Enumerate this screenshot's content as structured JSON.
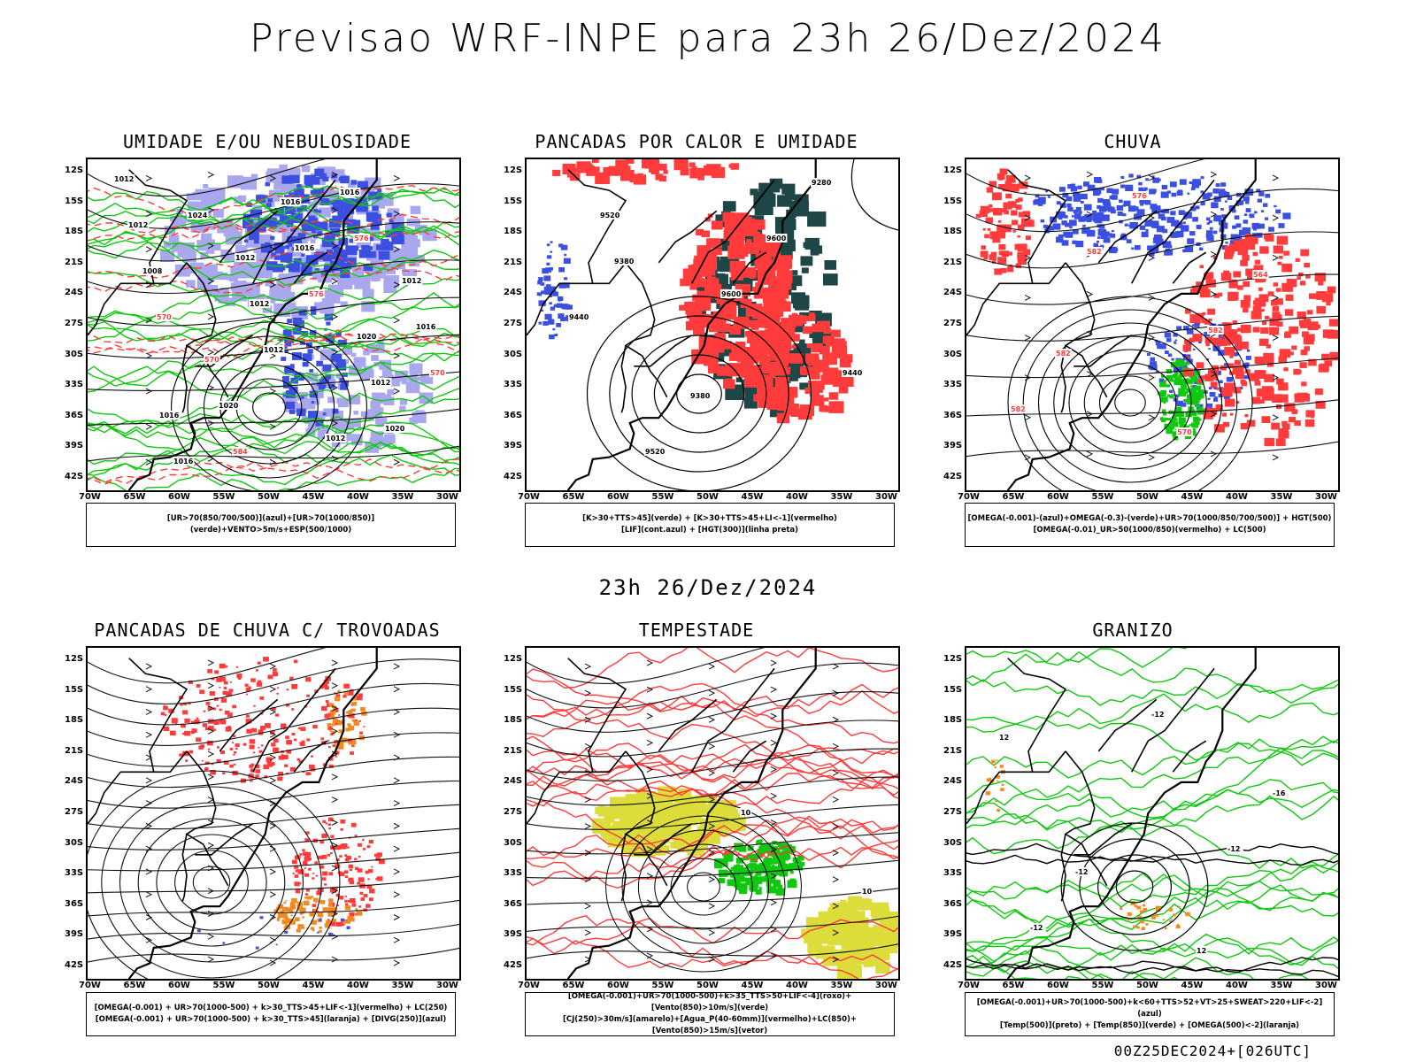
{
  "title": "Previsao WRF-INPE  para 23h 26/Dez/2024",
  "mid_title": "23h 26/Dez/2024",
  "footer": "00Z25DEC2024+[026UTC]",
  "lat_labels": [
    "12S",
    "15S",
    "18S",
    "21S",
    "24S",
    "27S",
    "30S",
    "33S",
    "36S",
    "39S",
    "42S"
  ],
  "lon_labels": [
    "70W",
    "65W",
    "60W",
    "55W",
    "50W",
    "45W",
    "40W",
    "35W",
    "30W"
  ],
  "panels": [
    {
      "title": "UMIDADE E/OU NEBULOSIDADE",
      "legend": [
        "[UR>70(850/700/500)](azul)+[UR>70(1000/850)](verde)+VENTO>5m/s+ESP(500/1000)"
      ],
      "contour_labels": [
        "1012",
        "1012",
        "1020",
        "1016",
        "1016",
        "1012",
        "570",
        "1012",
        "1012",
        "1012",
        "1012",
        "1016",
        "1016",
        "1016",
        "1020",
        "1016",
        "1008",
        "1012",
        "1020",
        "1024",
        "576",
        "570",
        "584",
        "576",
        "570"
      ]
    },
    {
      "title": "PANCADAS POR CALOR E UMIDADE",
      "legend": [
        "[K>30+TTS>45](verde) + [K>30+TTS>45+LI<-1](vermelho)",
        "[LIF](cont.azul) + [HGT(300)](linha preta)"
      ],
      "contour_labels": [
        "9520",
        "9600",
        "9440",
        "9520",
        "9600",
        "9440",
        "9380",
        "9280",
        "9380"
      ]
    },
    {
      "title": "CHUVA",
      "legend": [
        "[OMEGA(-0.001)-(azul)+OMEGA(-0.3)-(verde)+UR>70(1000/850/700/500)] + HGT(500)",
        "[OMEGA(-0.01)_UR>50(1000/850)(vermelho) + LC(500)"
      ],
      "contour_labels": [
        "582",
        "582",
        "582",
        "576",
        "564",
        "582",
        "570"
      ]
    },
    {
      "title": "PANCADAS DE CHUVA C/ TROVOADAS",
      "legend": [
        "[OMEGA(-0.001) + UR>70(1000-500) + k>30_TTS>45+LIF<-1](vermelho) + LC(250)",
        "[OMEGA(-0.001) + UR>70(1000-500) + k>30_TTS>45](laranja) + [DIVG(250)](azul)"
      ],
      "contour_labels": []
    },
    {
      "title": "TEMPESTADE",
      "legend": [
        "[OMEGA(-0.001)+UR>70(1000-500)+k>35_TTS>50+LIF<-4](roxo)+[Vento(850)>10m/s](verde)",
        "[CJ(250)>30m/s](amarelo)+[Agua_P(40-60mm)](vermelho)+LC(850)+[Vento(850)>15m/s](vetor)"
      ],
      "contour_labels": [
        "10",
        "10"
      ]
    },
    {
      "title": "GRANIZO",
      "legend": [
        "[OMEGA(-0.001)+UR>70(1000-500)+k<60+TTS>52+VT>25+SWEAT>220+LIF<-2](azul)",
        "[Temp(500)](preto) + [Temp(850)](verde) + [OMEGA(500)<-2](laranja)"
      ],
      "contour_labels": [
        "-12",
        "-12",
        "-12",
        "-16",
        "-12",
        "12",
        "12"
      ]
    }
  ],
  "colors": {
    "blue": "#3b4fe0",
    "lightblue": "#a9a8ef",
    "green": "#10c810",
    "red": "#ff3b3b",
    "orange": "#f28a1e",
    "yellow": "#dcdc3a",
    "darkteal": "#1f4646"
  }
}
